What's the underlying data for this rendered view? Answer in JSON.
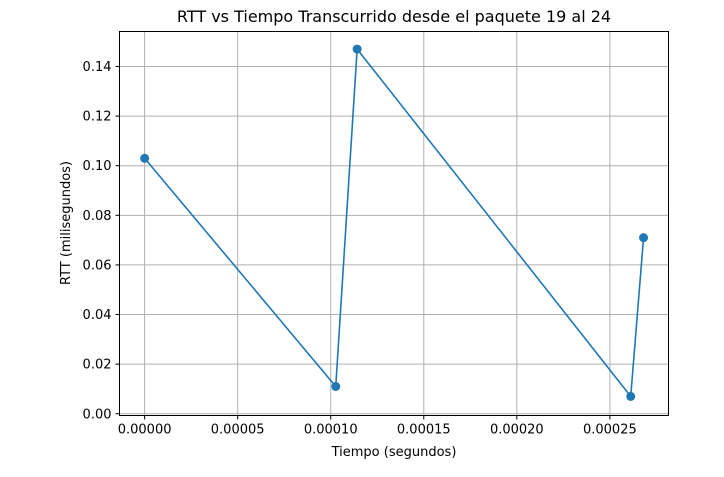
{
  "chart_data": {
    "type": "line",
    "title": "RTT vs Tiempo Transcurrido desde el paquete 19 al 24",
    "xlabel": "Tiempo (segundos)",
    "ylabel": "RTT (milisegundos)",
    "xlim": [
      -1.35e-05,
      0.0002815
    ],
    "ylim": [
      -0.0007,
      0.1541
    ],
    "xticks": [
      0.0,
      5e-05,
      0.0001,
      0.00015,
      0.0002,
      0.00025
    ],
    "xtick_labels": [
      "0.00000",
      "0.00005",
      "0.00010",
      "0.00015",
      "0.00020",
      "0.00025"
    ],
    "yticks": [
      0.0,
      0.02,
      0.04,
      0.06,
      0.08,
      0.1,
      0.12,
      0.14
    ],
    "ytick_labels": [
      "0.00",
      "0.02",
      "0.04",
      "0.06",
      "0.08",
      "0.10",
      "0.12",
      "0.14"
    ],
    "grid": true,
    "color": "#1f77b4",
    "series": [
      {
        "x": [
          0.0,
          0.0001027,
          0.0001142,
          0.0002612,
          0.0002681
        ],
        "y": [
          0.103,
          0.011,
          0.147,
          0.007,
          0.071
        ]
      }
    ]
  }
}
